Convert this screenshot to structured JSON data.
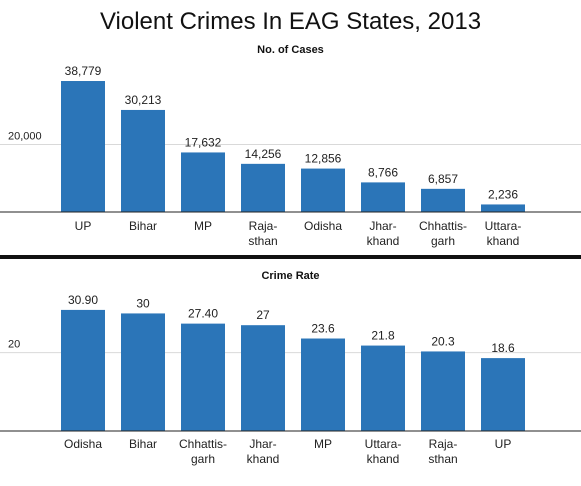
{
  "title": "Violent Crimes In EAG States, 2013",
  "colors": {
    "bar": "#2b75b8",
    "grid": "#d9d9d9",
    "axis": "#222222",
    "divider": "#111111"
  },
  "chart_data": [
    {
      "type": "bar",
      "title": "No. of Cases",
      "categories": [
        [
          "UP"
        ],
        [
          "Bihar"
        ],
        [
          "MP"
        ],
        [
          "Raja-",
          "sthan"
        ],
        [
          "Odisha"
        ],
        [
          "Jhar-",
          "khand"
        ],
        [
          "Chhattis-",
          "garh"
        ],
        [
          "Uttara-",
          "khand"
        ]
      ],
      "values": [
        38779,
        30213,
        17632,
        14256,
        12856,
        8766,
        6857,
        2236
      ],
      "labels": [
        "38,779",
        "30,213",
        "17,632",
        "14,256",
        "12,856",
        "8,766",
        "6,857",
        "2,236"
      ],
      "yticks": [
        20000
      ],
      "ytick_labels": [
        "20,000"
      ],
      "ylim": [
        0,
        45000
      ],
      "grid": true,
      "legend": "none"
    },
    {
      "type": "bar",
      "title": "Crime Rate",
      "categories": [
        [
          "Odisha"
        ],
        [
          "Bihar"
        ],
        [
          "Chhattis-",
          "garh"
        ],
        [
          "Jhar-",
          "khand"
        ],
        [
          "MP"
        ],
        [
          "Uttara-",
          "khand"
        ],
        [
          "Raja-",
          "sthan"
        ],
        [
          "UP"
        ]
      ],
      "values": [
        30.9,
        30,
        27.4,
        27,
        23.6,
        21.8,
        20.3,
        18.6
      ],
      "labels": [
        "30.90",
        "30",
        "27.40",
        "27",
        "23.6",
        "21.8",
        "20.3",
        "18.6"
      ],
      "yticks": [
        20
      ],
      "ytick_labels": [
        "20"
      ],
      "ylim": [
        0,
        37
      ],
      "grid": true,
      "legend": "none"
    }
  ]
}
